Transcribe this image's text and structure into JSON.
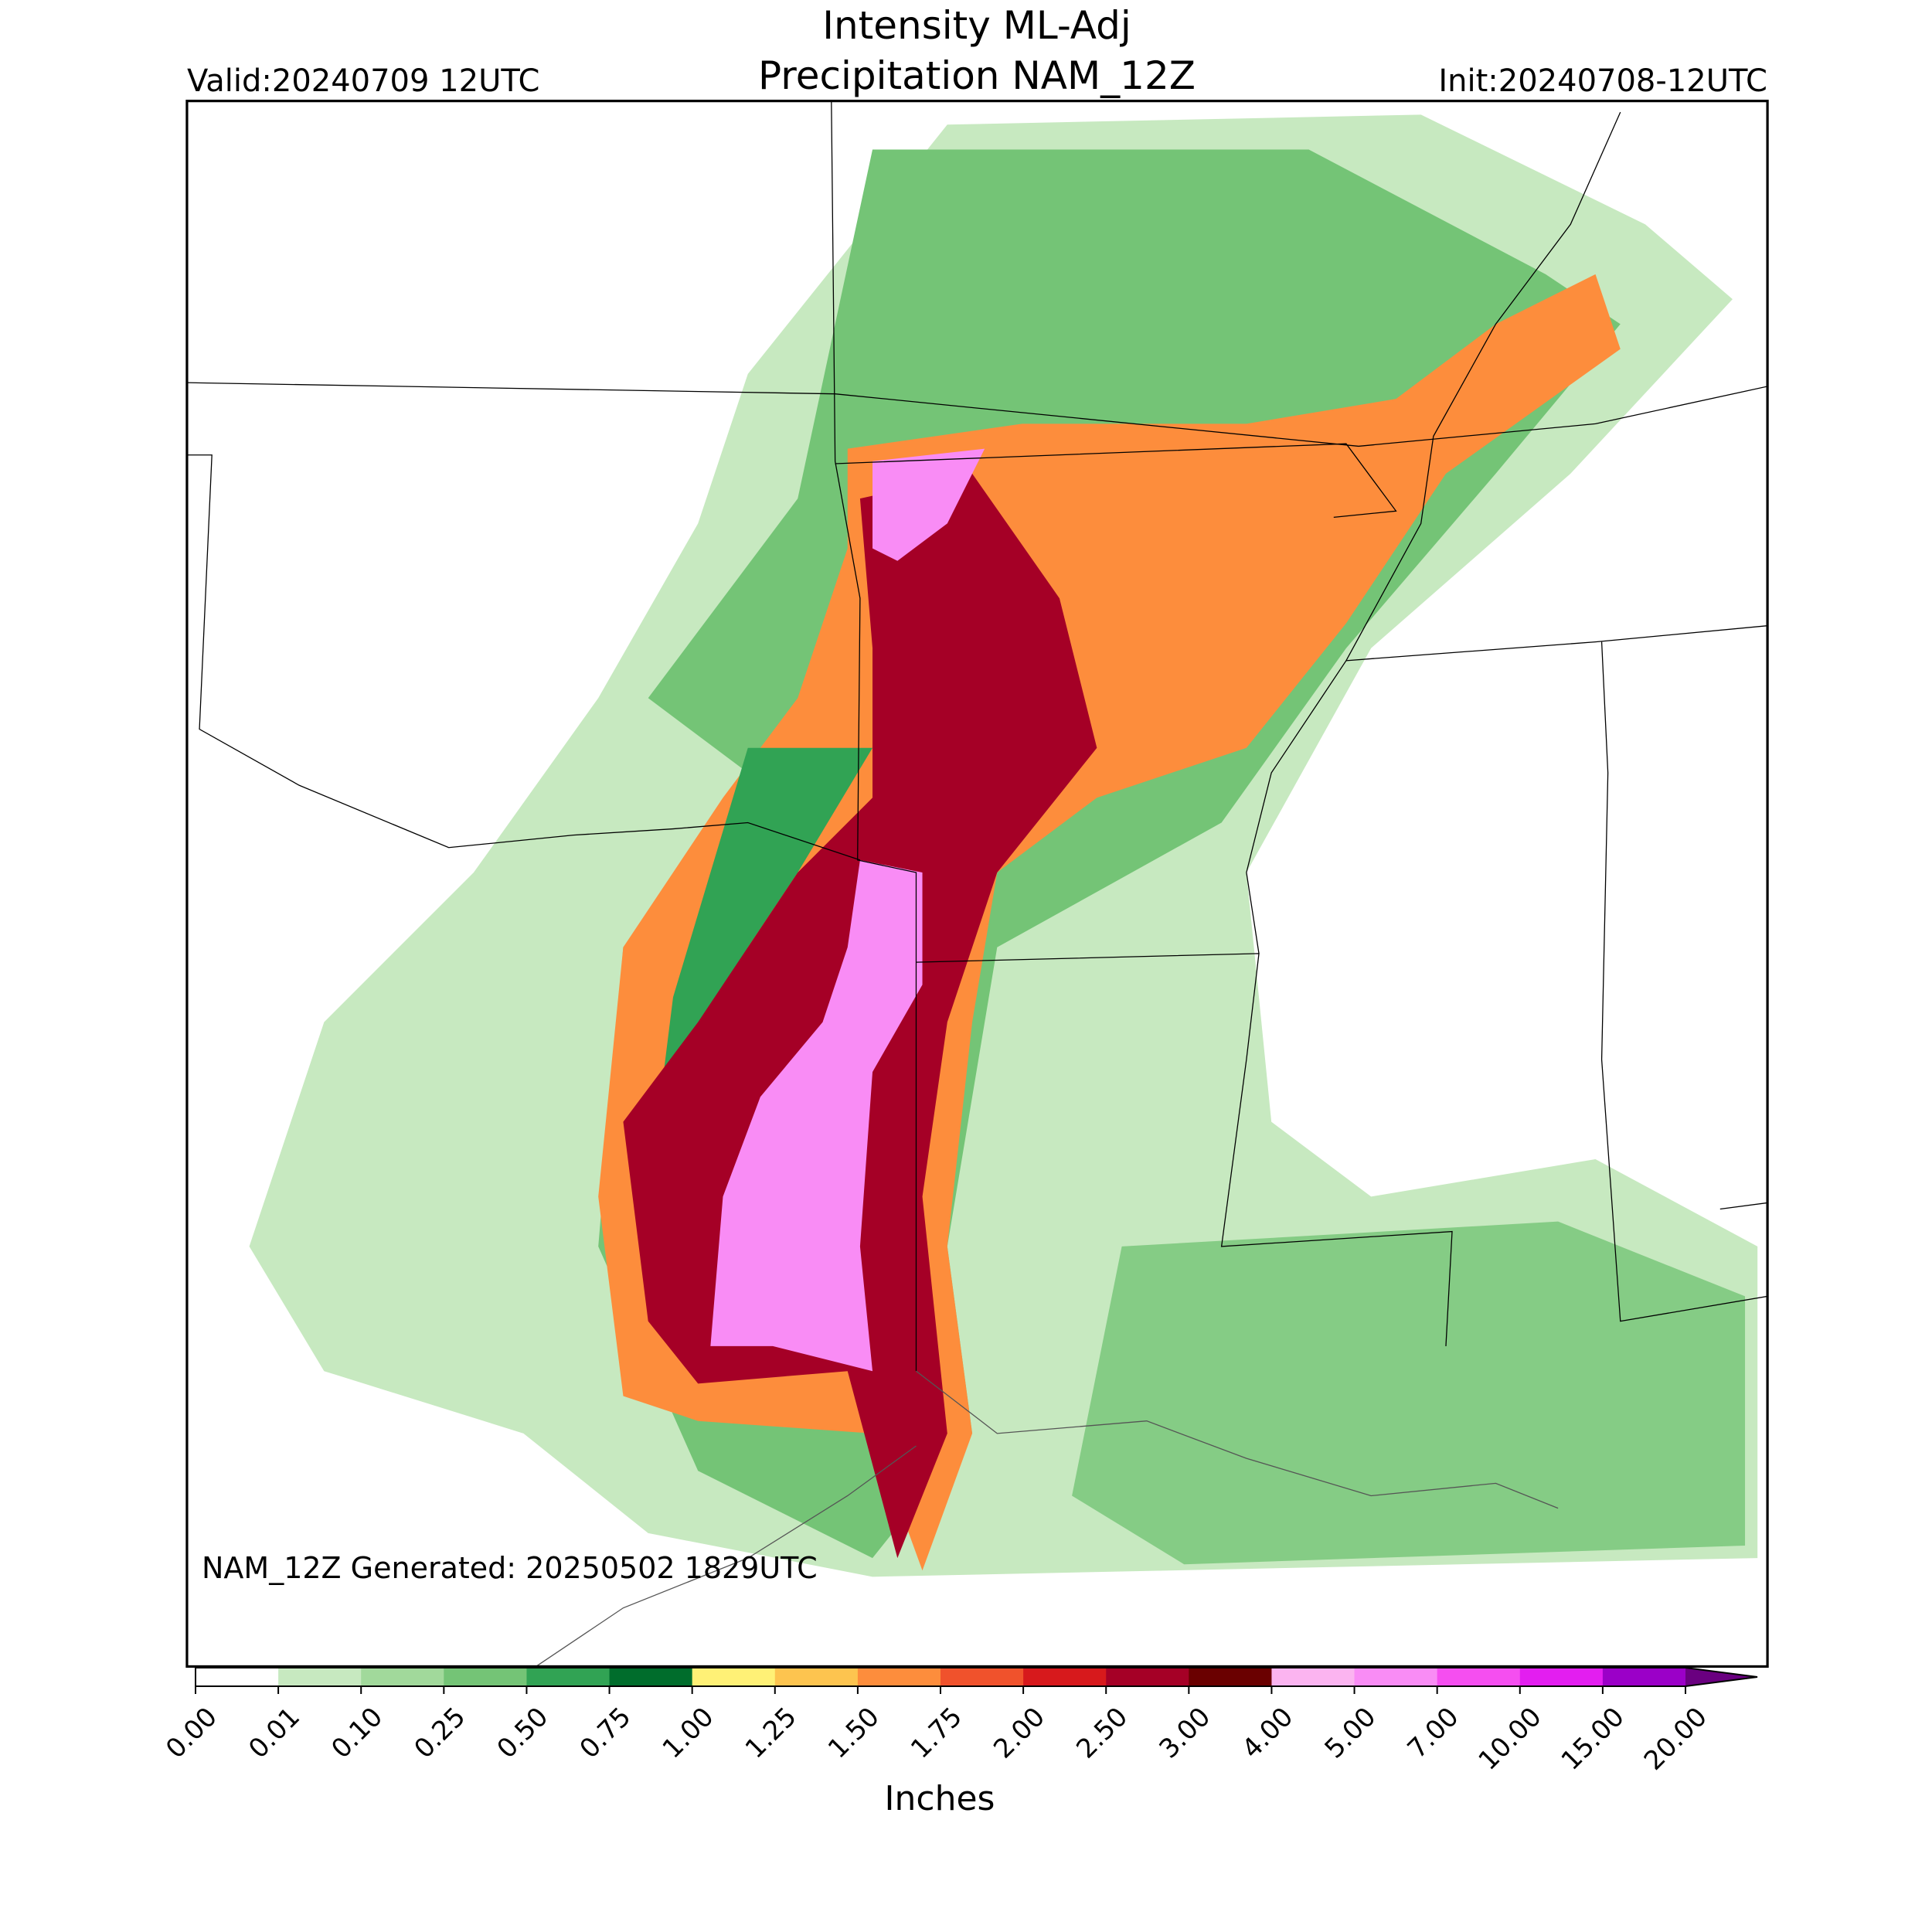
{
  "header": {
    "title": [
      "Intensity ML-Adj",
      "Precipitation NAM_12Z"
    ],
    "valid": "Valid:20240709 12UTC",
    "init": "Init:20240708-12UTC"
  },
  "footer": {
    "generated": "NAM_12Z Generated: 20250502 1829UTC"
  },
  "colorbar": {
    "label": "Inches",
    "ticks": [
      {
        "value": 0,
        "label": "0.00"
      },
      {
        "value": 0.01,
        "label": "0.01"
      },
      {
        "value": 0.1,
        "label": "0.10"
      },
      {
        "value": 0.25,
        "label": "0.25"
      },
      {
        "value": 0.5,
        "label": "0.50"
      },
      {
        "value": 0.75,
        "label": "0.75"
      },
      {
        "value": 1,
        "label": "1.00"
      },
      {
        "value": 1.25,
        "label": "1.25"
      },
      {
        "value": 1.5,
        "label": "1.50"
      },
      {
        "value": 1.75,
        "label": "1.75"
      },
      {
        "value": 2,
        "label": "2.00"
      },
      {
        "value": 2.5,
        "label": "2.50"
      },
      {
        "value": 3,
        "label": "3.00"
      },
      {
        "value": 4,
        "label": "4.00"
      },
      {
        "value": 5,
        "label": "5.00"
      },
      {
        "value": 7,
        "label": "7.00"
      },
      {
        "value": 10,
        "label": "10.00"
      },
      {
        "value": 15,
        "label": "15.00"
      },
      {
        "value": 20,
        "label": "20.00"
      }
    ],
    "colors": [
      "#ffffff",
      "#c7e9c0",
      "#a1d99b",
      "#74c476",
      "#31a354",
      "#006d2c",
      "#fff176",
      "#fdc44f",
      "#fd8d3c",
      "#f0522c",
      "#d7191c",
      "#a50026",
      "#6a0000",
      "#fbb4f0",
      "#f98cf5",
      "#f54ef0",
      "#e31ef0",
      "#9b00c8"
    ],
    "extend_color": "#6a0080"
  }
}
